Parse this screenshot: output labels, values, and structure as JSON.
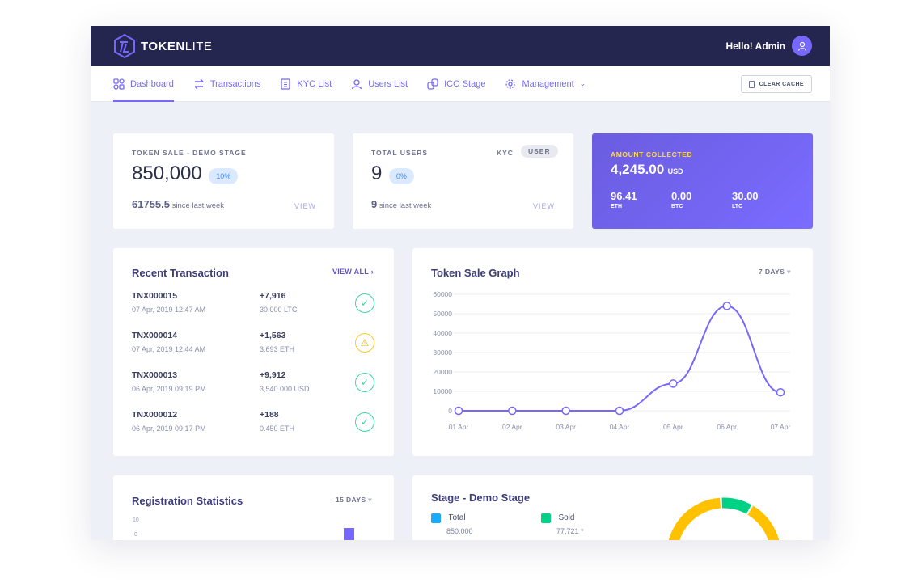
{
  "header": {
    "brand_bold": "TOKEN",
    "brand_light": "LITE",
    "greeting": "Hello! Admin"
  },
  "nav": {
    "items": [
      {
        "label": "Dashboard",
        "icon": "grid-icon"
      },
      {
        "label": "Transactions",
        "icon": "swap-icon"
      },
      {
        "label": "KYC List",
        "icon": "document-icon"
      },
      {
        "label": "Users List",
        "icon": "user-icon"
      },
      {
        "label": "ICO Stage",
        "icon": "coins-icon"
      },
      {
        "label": "Management",
        "icon": "gear-icon"
      }
    ],
    "clear_cache": "CLEAR CACHE"
  },
  "token_sale": {
    "label": "TOKEN SALE - DEMO STAGE",
    "value": "850,000",
    "pct": "10%",
    "week_value": "61755.5",
    "week_text": "since last week",
    "view": "VIEW"
  },
  "users": {
    "label": "TOTAL USERS",
    "tab_kyc": "KYC",
    "tab_user": "USER",
    "value": "9",
    "pct": "0%",
    "week_value": "9",
    "week_text": "since last week",
    "view": "VIEW"
  },
  "amount": {
    "label": "AMOUNT COLLECTED",
    "value": "4,245.00",
    "unit": "USD",
    "coins": [
      {
        "value": "96.41",
        "name": "ETH"
      },
      {
        "value": "0.00",
        "name": "BTC"
      },
      {
        "value": "30.00",
        "name": "LTC"
      }
    ]
  },
  "recent": {
    "title": "Recent Transaction",
    "view_all": "VIEW ALL",
    "rows": [
      {
        "id": "TNX000015",
        "date": "07 Apr, 2019 12:47 AM",
        "amount": "+7,916",
        "currency": "30.000 LTC",
        "status": "success"
      },
      {
        "id": "TNX000014",
        "date": "07 Apr, 2019 12:44 AM",
        "amount": "+1,563",
        "currency": "3.693 ETH",
        "status": "warning"
      },
      {
        "id": "TNX000013",
        "date": "06 Apr, 2019 09:19 PM",
        "amount": "+9,912",
        "currency": "3,540.000 USD",
        "status": "success"
      },
      {
        "id": "TNX000012",
        "date": "06 Apr, 2019 09:17 PM",
        "amount": "+188",
        "currency": "0.450 ETH",
        "status": "success"
      }
    ]
  },
  "graph": {
    "title": "Token Sale Graph",
    "range": "7 DAYS"
  },
  "registration": {
    "title": "Registration Statistics",
    "range": "15 DAYS",
    "y_ticks": [
      "10",
      "8"
    ]
  },
  "stage": {
    "title": "Stage - Demo Stage",
    "total_label": "Total",
    "total_value": "850,000",
    "sold_label": "Sold",
    "sold_value": "77,721 *",
    "colors": {
      "total": "#1babfe",
      "sold": "#00d285",
      "unsold": "#ffc100"
    }
  },
  "chart_data": {
    "type": "line",
    "title": "Token Sale Graph",
    "x": [
      "01 Apr",
      "02 Apr",
      "03 Apr",
      "04 Apr",
      "05 Apr",
      "06 Apr",
      "07 Apr"
    ],
    "values": [
      0,
      0,
      0,
      0,
      14000,
      54000,
      9500
    ],
    "ylim": [
      0,
      60000
    ],
    "y_ticks": [
      0,
      10000,
      20000,
      30000,
      40000,
      50000,
      60000
    ],
    "grid": true,
    "color": "#7668fe"
  }
}
